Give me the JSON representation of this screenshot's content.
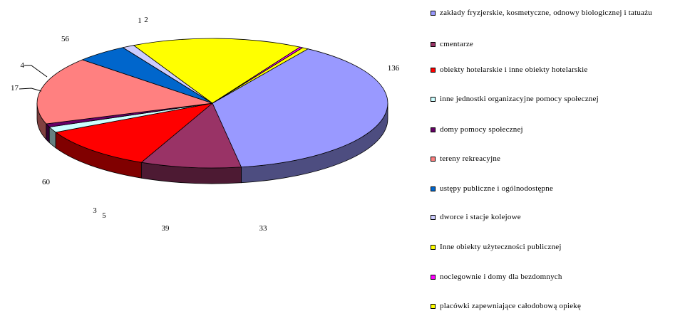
{
  "chart_data": {
    "type": "pie",
    "title": "",
    "legend_position": "right",
    "slices": [
      {
        "label": "zakłady fryzjerskie, kosmetyczne, odnowy biologicznej i tatuażu",
        "value": 136,
        "color": "#9999FF"
      },
      {
        "label": "cmentarze",
        "value": 33,
        "color": "#993366"
      },
      {
        "label": "obiekty hotelarskie i inne obiekty hotelarskie",
        "value": 39,
        "color": "#FF0000"
      },
      {
        "label": "inne jednostki  organizacyjne pomocy społecznej",
        "value": 5,
        "color": "#CCFFFF"
      },
      {
        "label": "domy pomocy społecznej",
        "value": 3,
        "color": "#660066"
      },
      {
        "label": "tereny rekreacyjne",
        "value": 60,
        "color": "#FF8080"
      },
      {
        "label": "ustępy publiczne i ogólnodostępne",
        "value": 17,
        "color": "#0066CC"
      },
      {
        "label": "dworce i stacje kolejowe",
        "value": 4,
        "color": "#CCCCFF"
      },
      {
        "label": "Inne obiekty użyteczności publicznej",
        "value": 56,
        "color": "#FFFF00"
      },
      {
        "label": "noclegownie i domy dla bezdomnych",
        "value": 1,
        "color": "#FF00FF"
      },
      {
        "label": "placówki zapewniające całodobową opiekę",
        "value": 2,
        "color": "#FFFF00"
      }
    ]
  }
}
